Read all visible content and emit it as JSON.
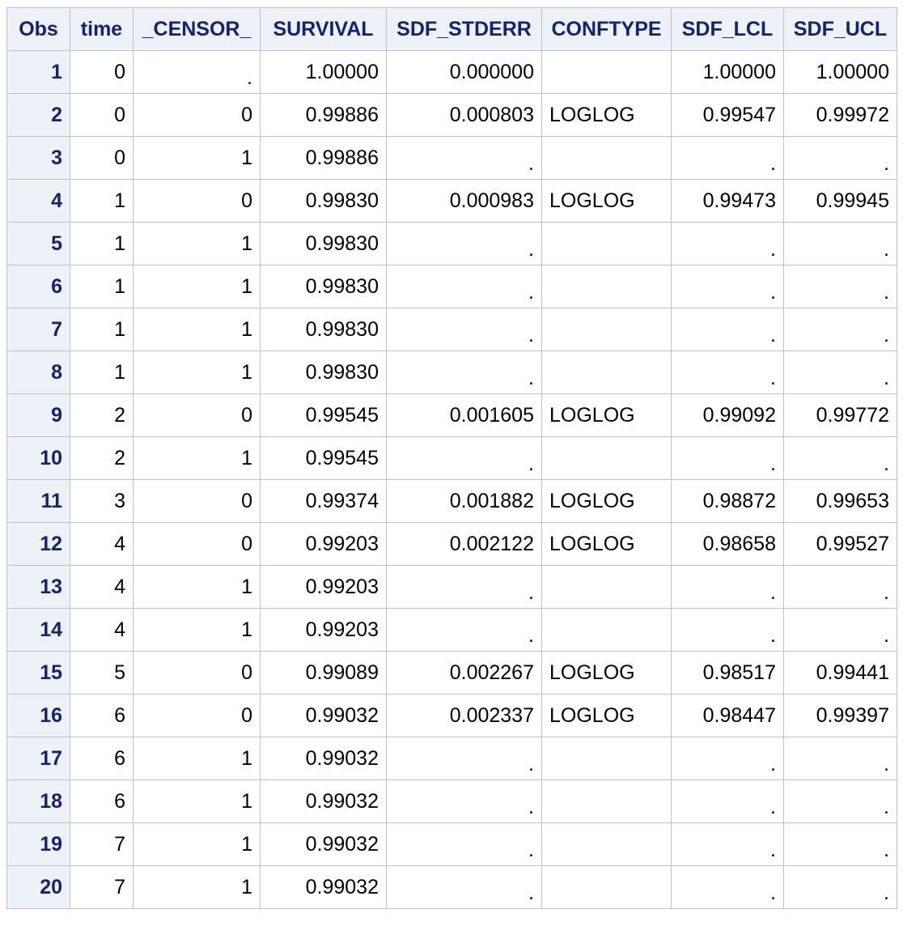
{
  "table": {
    "columns": [
      "Obs",
      "time",
      "_CENSOR_",
      "SURVIVAL",
      "SDF_STDERR",
      "CONFTYPE",
      "SDF_LCL",
      "SDF_UCL"
    ],
    "rows": [
      [
        "1",
        "0",
        ".",
        "1.00000",
        "0.000000",
        "",
        "1.00000",
        "1.00000"
      ],
      [
        "2",
        "0",
        "0",
        "0.99886",
        "0.000803",
        "LOGLOG",
        "0.99547",
        "0.99972"
      ],
      [
        "3",
        "0",
        "1",
        "0.99886",
        ".",
        "",
        ".",
        "."
      ],
      [
        "4",
        "1",
        "0",
        "0.99830",
        "0.000983",
        "LOGLOG",
        "0.99473",
        "0.99945"
      ],
      [
        "5",
        "1",
        "1",
        "0.99830",
        ".",
        "",
        ".",
        "."
      ],
      [
        "6",
        "1",
        "1",
        "0.99830",
        ".",
        "",
        ".",
        "."
      ],
      [
        "7",
        "1",
        "1",
        "0.99830",
        ".",
        "",
        ".",
        "."
      ],
      [
        "8",
        "1",
        "1",
        "0.99830",
        ".",
        "",
        ".",
        "."
      ],
      [
        "9",
        "2",
        "0",
        "0.99545",
        "0.001605",
        "LOGLOG",
        "0.99092",
        "0.99772"
      ],
      [
        "10",
        "2",
        "1",
        "0.99545",
        ".",
        "",
        ".",
        "."
      ],
      [
        "11",
        "3",
        "0",
        "0.99374",
        "0.001882",
        "LOGLOG",
        "0.98872",
        "0.99653"
      ],
      [
        "12",
        "4",
        "0",
        "0.99203",
        "0.002122",
        "LOGLOG",
        "0.98658",
        "0.99527"
      ],
      [
        "13",
        "4",
        "1",
        "0.99203",
        ".",
        "",
        ".",
        "."
      ],
      [
        "14",
        "4",
        "1",
        "0.99203",
        ".",
        "",
        ".",
        "."
      ],
      [
        "15",
        "5",
        "0",
        "0.99089",
        "0.002267",
        "LOGLOG",
        "0.98517",
        "0.99441"
      ],
      [
        "16",
        "6",
        "0",
        "0.99032",
        "0.002337",
        "LOGLOG",
        "0.98447",
        "0.99397"
      ],
      [
        "17",
        "6",
        "1",
        "0.99032",
        ".",
        "",
        ".",
        "."
      ],
      [
        "18",
        "6",
        "1",
        "0.99032",
        ".",
        "",
        ".",
        "."
      ],
      [
        "19",
        "7",
        "1",
        "0.99032",
        ".",
        "",
        ".",
        "."
      ],
      [
        "20",
        "7",
        "1",
        "0.99032",
        ".",
        "",
        ".",
        "."
      ]
    ]
  },
  "colors": {
    "header_background": "#edf2f9",
    "header_text": "#112277",
    "grid_lines": "#c1c1c1",
    "cell_background": "#ffffff"
  }
}
